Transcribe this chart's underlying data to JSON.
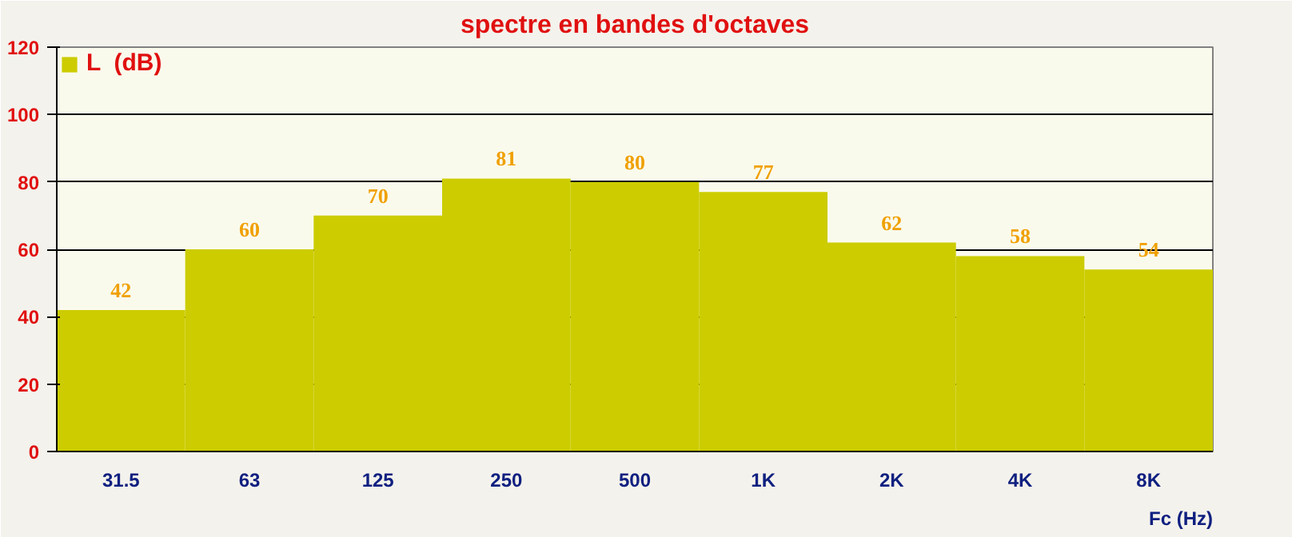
{
  "chart_data": {
    "type": "bar",
    "title": "spectre en bandes d'octaves",
    "xlabel": "Fc (Hz)",
    "categories": [
      "31.5",
      "63",
      "125",
      "250",
      "500",
      "1K",
      "2K",
      "4K",
      "8K"
    ],
    "series": [
      {
        "name": "L  (dB)",
        "color": "#cccc00",
        "values": [
          42,
          60,
          70,
          81,
          80,
          77,
          62,
          58,
          54
        ]
      }
    ],
    "ylim": [
      0,
      120
    ],
    "yticks": [
      0,
      20,
      40,
      60,
      80,
      100,
      120
    ],
    "grid": "y",
    "legend": "top left",
    "data_labels": true
  }
}
